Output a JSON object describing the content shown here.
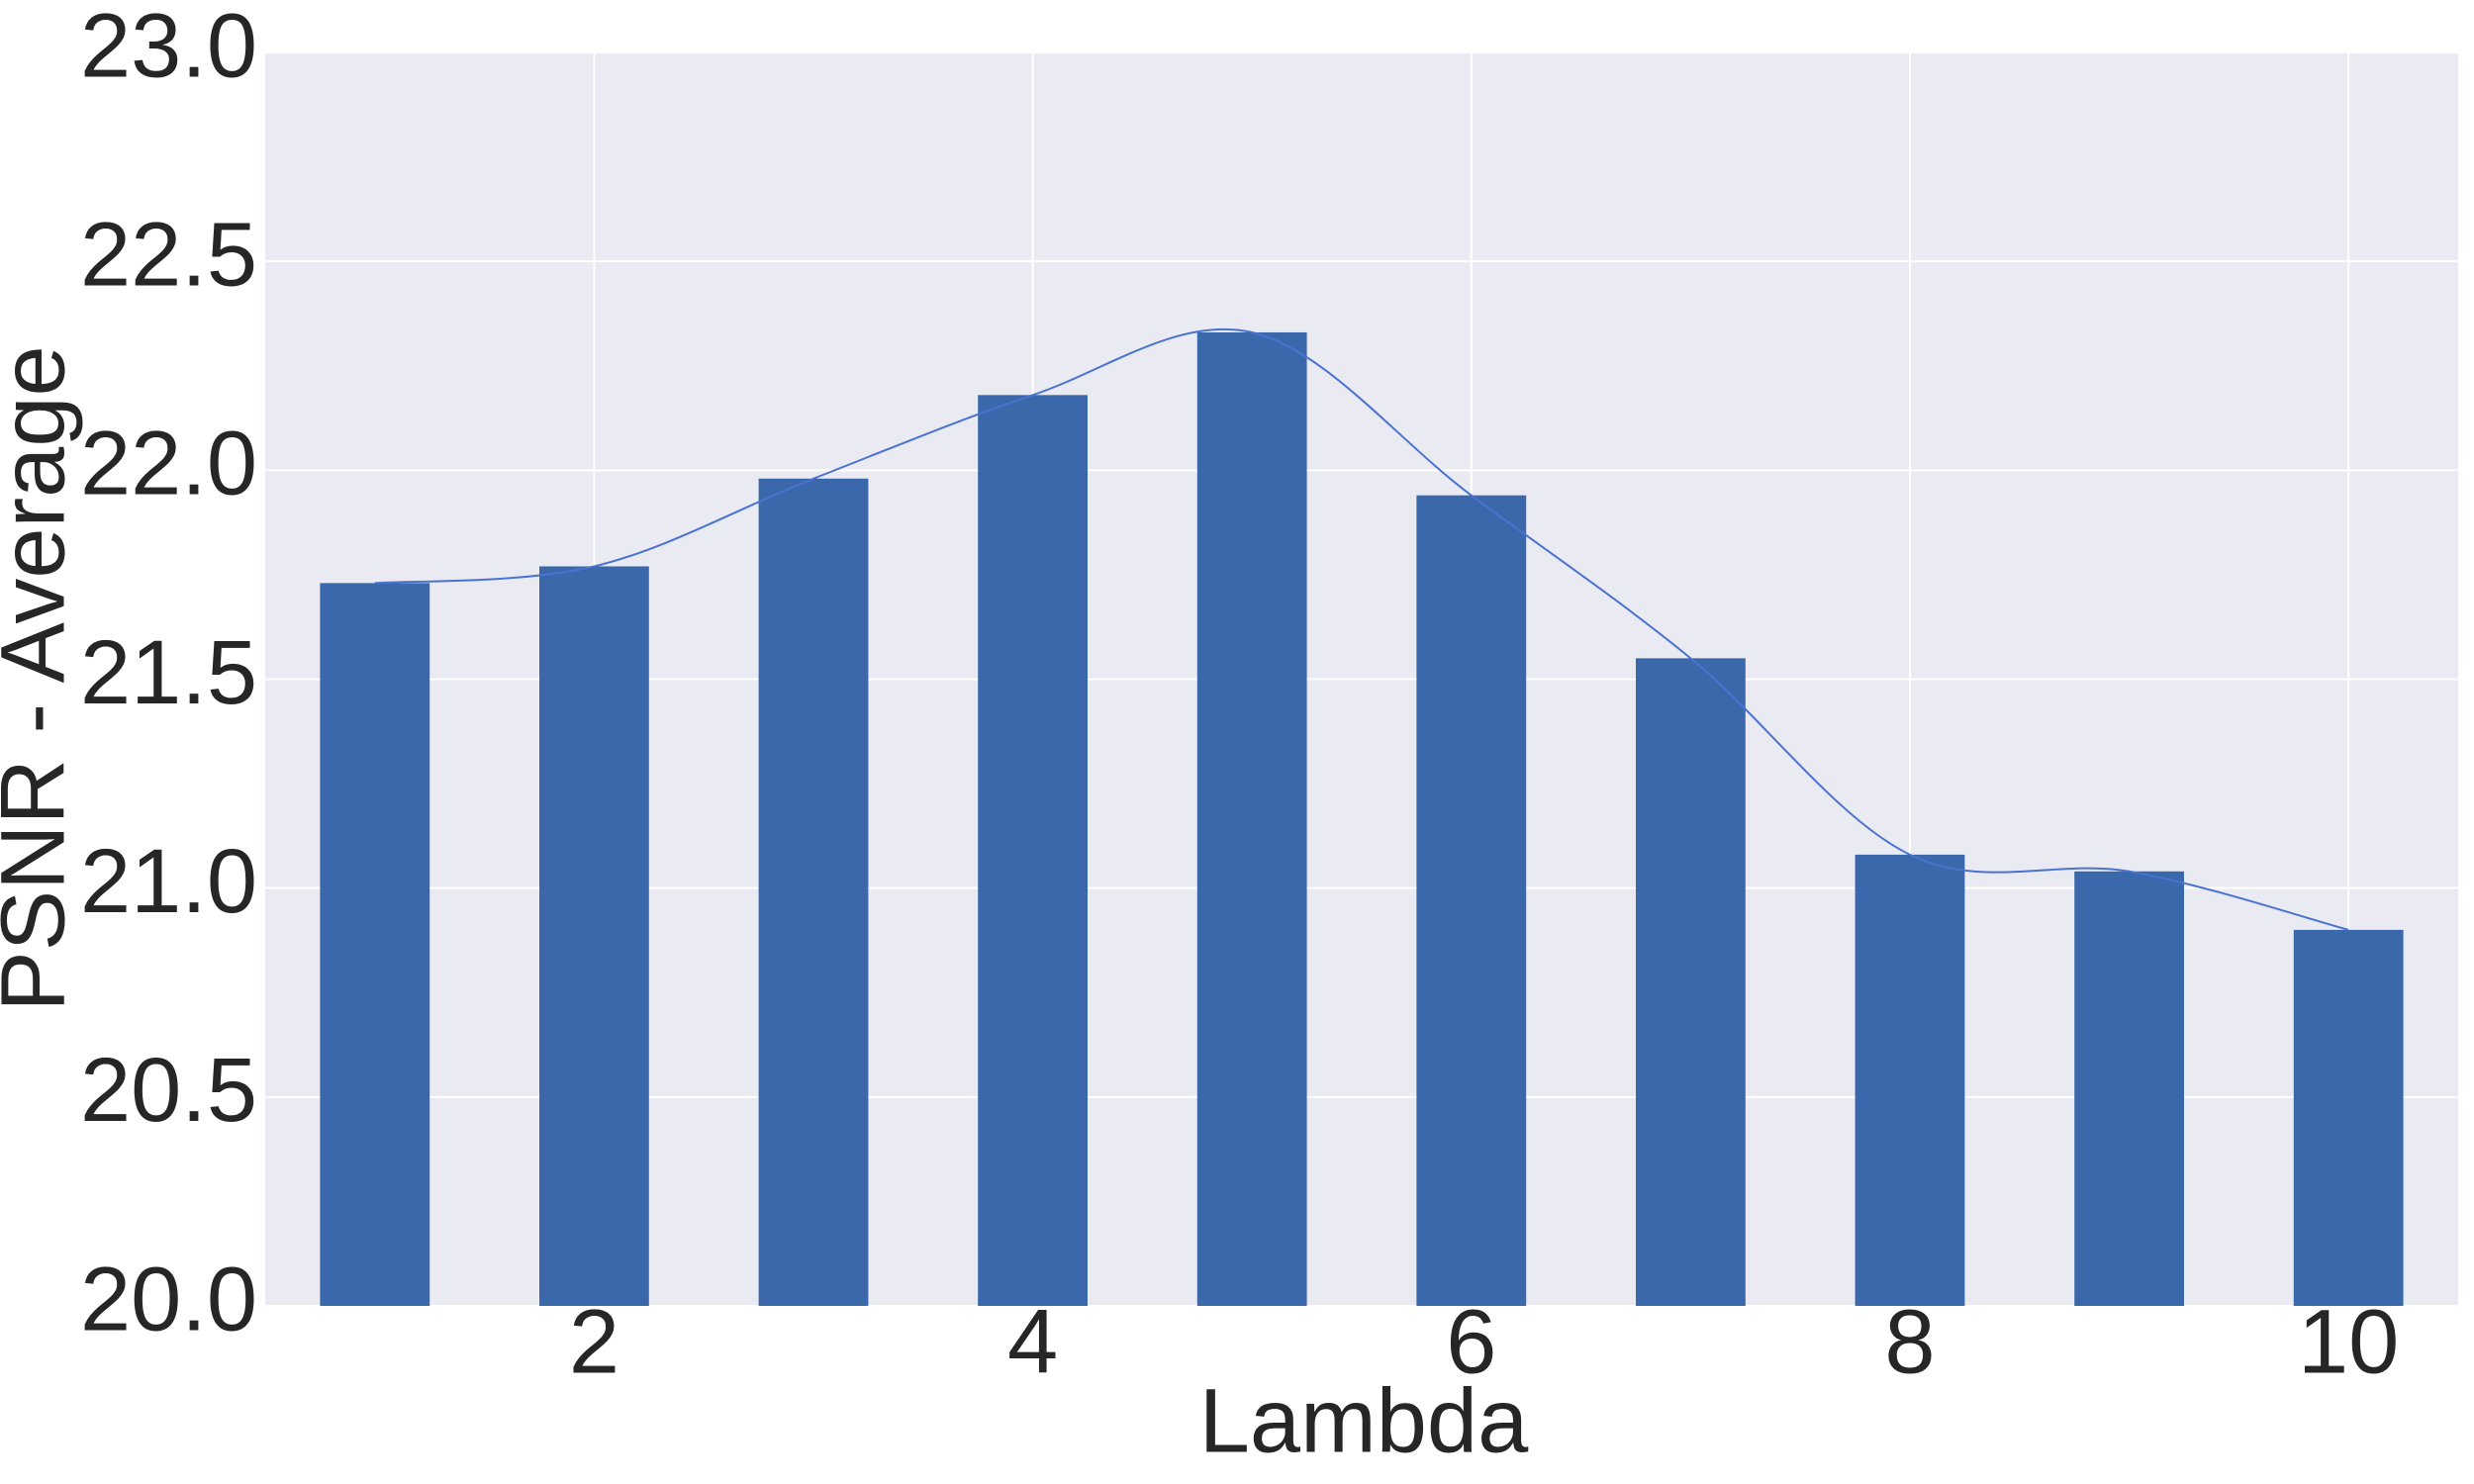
{
  "chart_data": {
    "type": "bar",
    "x_label": "Lambda",
    "y_label": "PSNR - Average",
    "x": [
      1,
      2,
      3,
      4,
      5,
      6,
      7,
      8,
      9,
      10
    ],
    "values": [
      21.73,
      21.77,
      21.98,
      22.18,
      22.33,
      21.94,
      21.55,
      21.08,
      21.04,
      20.9
    ],
    "color": "#3a68ab",
    "bar_width": 0.5,
    "smooth_line": true,
    "line_color": "#4a72d0",
    "xlim": [
      0.5,
      10.5
    ],
    "xticks": [
      2,
      4,
      6,
      8,
      10
    ],
    "ylim": [
      20,
      23
    ],
    "yticks": [
      {
        "value": 20,
        "label": "20.0"
      },
      {
        "value": 20.5,
        "label": "20.5"
      },
      {
        "value": 21,
        "label": "21.0"
      },
      {
        "value": 21.5,
        "label": "21.5"
      },
      {
        "value": 22,
        "label": "22.0"
      },
      {
        "value": 22.5,
        "label": "22.5"
      },
      {
        "value": 23,
        "label": "23.0"
      }
    ],
    "grid": true
  }
}
